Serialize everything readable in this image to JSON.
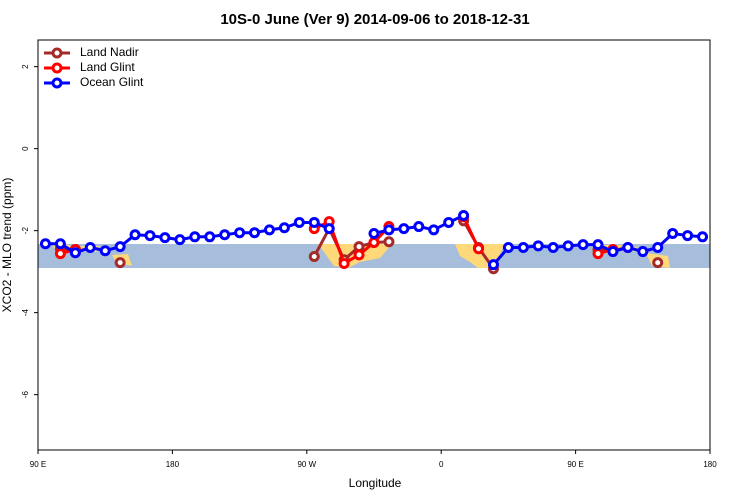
{
  "chart_data": {
    "type": "line",
    "title": "10S-0 June (Ver 9)   2014-09-06 to 2018-12-31",
    "x_label": "Longitude",
    "y_label": "XCO2 - MLO trend (ppm)",
    "x": [
      95,
      105,
      115,
      125,
      135,
      145,
      155,
      165,
      175,
      185,
      195,
      205,
      215,
      225,
      235,
      245,
      255,
      265,
      275,
      285,
      295,
      305,
      315,
      325,
      335,
      345,
      355,
      365,
      375,
      385,
      395,
      405,
      415,
      425,
      435,
      445,
      455,
      465,
      475,
      485,
      495,
      505,
      515,
      525,
      535
    ],
    "xlim": [
      90,
      540
    ],
    "xticks": [
      {
        "value": 90,
        "label": "90 E"
      },
      {
        "value": 180,
        "label": "180"
      },
      {
        "value": 270,
        "label": "90 W"
      },
      {
        "value": 360,
        "label": "0"
      },
      {
        "value": 450,
        "label": "90 E"
      },
      {
        "value": 540,
        "label": "180"
      }
    ],
    "ylim": [
      -7.35,
      2.65
    ],
    "yticks": [
      2,
      0,
      -2,
      -4,
      -6
    ],
    "legend": "top-left",
    "series": [
      {
        "name": "Land Nadir",
        "color": "#a52a2a",
        "values": [
          null,
          -2.44,
          -2.46,
          null,
          null,
          -2.78,
          null,
          null,
          null,
          null,
          null,
          null,
          null,
          null,
          null,
          null,
          null,
          null,
          -2.63,
          -1.95,
          -2.71,
          -2.39,
          -2.29,
          -2.27,
          null,
          null,
          null,
          null,
          -1.76,
          -2.41,
          -2.93,
          null,
          null,
          null,
          null,
          null,
          null,
          -2.46,
          -2.49,
          -2.41,
          null,
          -2.78,
          null,
          null,
          null
        ]
      },
      {
        "name": "Land Glint",
        "color": "#ff0000",
        "values": [
          null,
          -2.56,
          -2.46,
          null,
          null,
          null,
          null,
          null,
          null,
          null,
          null,
          null,
          null,
          null,
          null,
          null,
          null,
          null,
          -1.95,
          -1.78,
          -2.8,
          -2.59,
          -2.29,
          -1.9,
          null,
          null,
          null,
          null,
          -1.66,
          -2.44,
          null,
          null,
          null,
          null,
          null,
          null,
          null,
          -2.56,
          -2.46,
          null,
          null,
          null,
          null,
          null,
          null
        ]
      },
      {
        "name": "Ocean Glint",
        "color": "#0000ff",
        "values": [
          -2.32,
          -2.32,
          -2.54,
          -2.41,
          -2.49,
          -2.39,
          -2.1,
          -2.12,
          -2.17,
          -2.22,
          -2.15,
          -2.15,
          -2.1,
          -2.05,
          -2.05,
          -1.98,
          -1.93,
          -1.8,
          -1.8,
          -1.95,
          null,
          null,
          -2.07,
          -1.98,
          -1.95,
          -1.9,
          -1.98,
          -1.8,
          -1.63,
          null,
          -2.83,
          -2.41,
          -2.41,
          -2.37,
          -2.41,
          -2.37,
          -2.34,
          -2.34,
          -2.51,
          -2.41,
          -2.51,
          -2.41,
          -2.07,
          -2.12,
          -2.15
        ]
      }
    ]
  }
}
